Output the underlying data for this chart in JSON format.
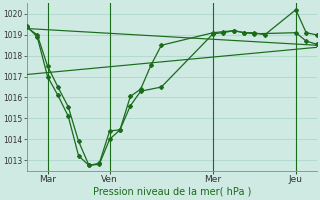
{
  "background_color": "#ceeae2",
  "grid_color": "#aad4c8",
  "line_color": "#1a6b1a",
  "x_ticks_labels": [
    "Mar",
    "Ven",
    "Mer",
    "Jeu"
  ],
  "xlabel": "Pression niveau de la mer( hPa )",
  "ylim": [
    1012.5,
    1020.5
  ],
  "yticks": [
    1013,
    1014,
    1015,
    1016,
    1017,
    1018,
    1019,
    1020
  ],
  "xlim": [
    0,
    28
  ],
  "x_ticks_pos": [
    2,
    8,
    18,
    26
  ],
  "smooth_line1_x": [
    0,
    28
  ],
  "smooth_line1_y": [
    1019.3,
    1018.5
  ],
  "smooth_line2_x": [
    0,
    28
  ],
  "smooth_line2_y": [
    1017.1,
    1018.4
  ],
  "line3_x": [
    0,
    1,
    2,
    3,
    4,
    5,
    6,
    7,
    8,
    9,
    10,
    11,
    13,
    18,
    19,
    20,
    21,
    22,
    23,
    26,
    27,
    28
  ],
  "line3_y": [
    1019.4,
    1018.9,
    1017.0,
    1016.1,
    1015.1,
    1013.2,
    1012.75,
    1012.8,
    1014.0,
    1014.45,
    1015.6,
    1016.3,
    1016.5,
    1019.05,
    1019.1,
    1019.2,
    1019.1,
    1019.1,
    1019.0,
    1020.2,
    1019.1,
    1019.0
  ],
  "line4_x": [
    0,
    1,
    2,
    3,
    4,
    5,
    6,
    7,
    8,
    9,
    10,
    11,
    12,
    13,
    18,
    19,
    20,
    21,
    22,
    26,
    27,
    28
  ],
  "line4_y": [
    1019.35,
    1019.0,
    1017.5,
    1016.5,
    1015.55,
    1013.9,
    1012.75,
    1012.85,
    1014.4,
    1014.45,
    1016.05,
    1016.4,
    1017.55,
    1018.5,
    1019.1,
    1019.15,
    1019.2,
    1019.1,
    1019.05,
    1019.1,
    1018.7,
    1018.55
  ]
}
